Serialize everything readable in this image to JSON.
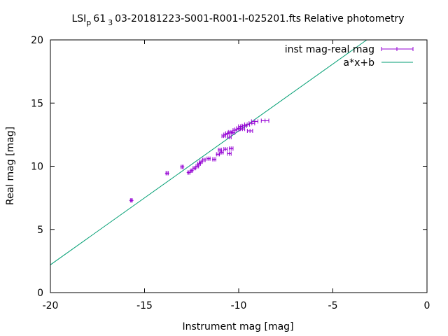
{
  "chart_data": {
    "type": "scatter",
    "title": "LSI_p61_3 03-20181223-S001-R001-I-025201.fts Relative photometry",
    "title_parts": {
      "main": "LSI",
      "sub1": "p",
      "mid": "61",
      "sub2": "3",
      "rest": "03-20181223-S001-R001-I-025201.fts Relative photometry"
    },
    "xlabel": "Instrument mag [mag]",
    "ylabel": "Real mag [mag]",
    "xlim": [
      -20,
      0
    ],
    "ylim": [
      0,
      20
    ],
    "xticks": [
      -20,
      -15,
      -10,
      -5,
      0
    ],
    "yticks": [
      0,
      5,
      10,
      15,
      20
    ],
    "xtick_labels": [
      "-20",
      "-15",
      "-10",
      "-5",
      "0"
    ],
    "ytick_labels": [
      "0",
      "5",
      "10",
      "15",
      "20"
    ],
    "grid": false,
    "legend_position": "top-right",
    "series": [
      {
        "name": "inst mag-real mag",
        "type": "errorbars",
        "color": "#9400d3",
        "points": [
          {
            "x": -15.7,
            "y": 7.3,
            "xerr": 0.05
          },
          {
            "x": -13.8,
            "y": 9.45,
            "xerr": 0.06
          },
          {
            "x": -13.0,
            "y": 9.95,
            "xerr": 0.06
          },
          {
            "x": -12.65,
            "y": 9.5,
            "xerr": 0.06
          },
          {
            "x": -12.5,
            "y": 9.65,
            "xerr": 0.06
          },
          {
            "x": -12.35,
            "y": 9.85,
            "xerr": 0.07
          },
          {
            "x": -12.2,
            "y": 10.0,
            "xerr": 0.07
          },
          {
            "x": -12.1,
            "y": 10.2,
            "xerr": 0.07
          },
          {
            "x": -12.0,
            "y": 10.35,
            "xerr": 0.07
          },
          {
            "x": -11.85,
            "y": 10.5,
            "xerr": 0.07
          },
          {
            "x": -11.6,
            "y": 10.6,
            "xerr": 0.08
          },
          {
            "x": -11.3,
            "y": 10.55,
            "xerr": 0.08
          },
          {
            "x": -11.1,
            "y": 10.95,
            "xerr": 0.08
          },
          {
            "x": -11.0,
            "y": 11.3,
            "xerr": 0.08
          },
          {
            "x": -10.9,
            "y": 11.1,
            "xerr": 0.08
          },
          {
            "x": -10.7,
            "y": 11.35,
            "xerr": 0.09
          },
          {
            "x": -10.5,
            "y": 11.0,
            "xerr": 0.1
          },
          {
            "x": -10.4,
            "y": 11.4,
            "xerr": 0.1
          },
          {
            "x": -10.8,
            "y": 12.4,
            "xerr": 0.09
          },
          {
            "x": -10.7,
            "y": 12.5,
            "xerr": 0.09
          },
          {
            "x": -10.6,
            "y": 12.6,
            "xerr": 0.09
          },
          {
            "x": -10.5,
            "y": 12.3,
            "xerr": 0.1
          },
          {
            "x": -10.45,
            "y": 12.7,
            "xerr": 0.1
          },
          {
            "x": -10.3,
            "y": 12.65,
            "xerr": 0.1
          },
          {
            "x": -10.2,
            "y": 12.85,
            "xerr": 0.1
          },
          {
            "x": -10.1,
            "y": 12.9,
            "xerr": 0.11
          },
          {
            "x": -10.0,
            "y": 13.0,
            "xerr": 0.11
          },
          {
            "x": -9.9,
            "y": 13.15,
            "xerr": 0.11
          },
          {
            "x": -9.8,
            "y": 12.95,
            "xerr": 0.12
          },
          {
            "x": -9.7,
            "y": 13.2,
            "xerr": 0.12
          },
          {
            "x": -9.55,
            "y": 13.3,
            "xerr": 0.13
          },
          {
            "x": -9.4,
            "y": 12.8,
            "xerr": 0.14
          },
          {
            "x": -9.3,
            "y": 13.4,
            "xerr": 0.15
          },
          {
            "x": -9.15,
            "y": 13.55,
            "xerr": 0.17
          },
          {
            "x": -8.6,
            "y": 13.6,
            "xerr": 0.2
          }
        ]
      },
      {
        "name": "a*x+b",
        "type": "line",
        "color": "#009e73",
        "x": [
          -20,
          -3.2
        ],
        "y": [
          2.2,
          20
        ]
      }
    ]
  }
}
